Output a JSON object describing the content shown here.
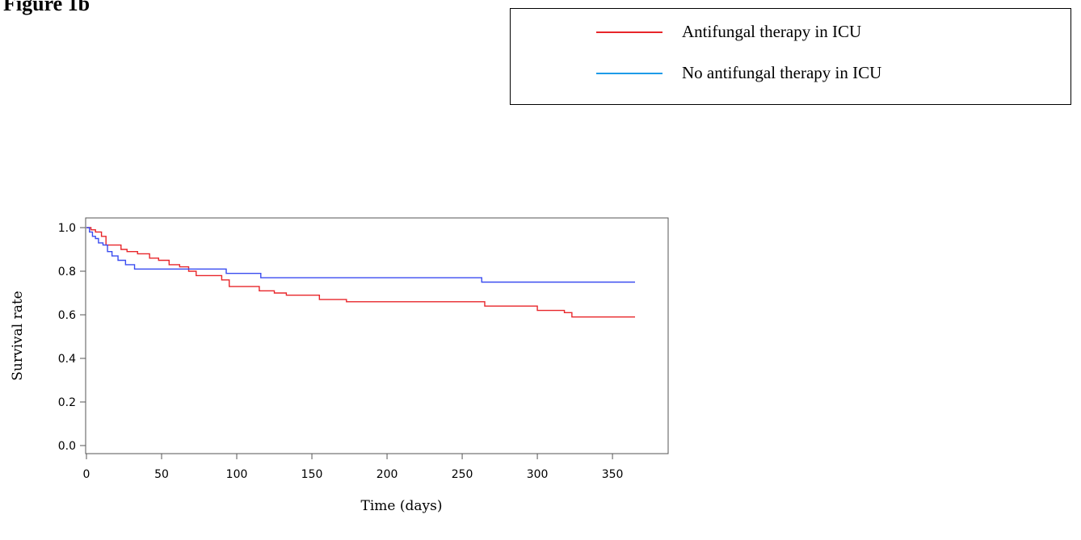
{
  "figure_label": "Figure 1b",
  "chart_data": {
    "type": "line",
    "step": true,
    "title": "",
    "xlabel": "Time (days)",
    "ylabel": "Survival rate",
    "xlim": [
      0,
      365
    ],
    "ylim": [
      0,
      1.0
    ],
    "xticks": [
      0,
      50,
      100,
      150,
      200,
      250,
      300,
      350
    ],
    "xtick_labels": [
      "0",
      "50",
      "100",
      "150",
      "200",
      "250",
      "300",
      "350"
    ],
    "yticks": [
      0.0,
      0.2,
      0.4,
      0.6,
      0.8,
      1.0
    ],
    "ytick_labels": [
      "0.0",
      "0.2",
      "0.4",
      "0.6",
      "0.8",
      "1.0"
    ],
    "grid": false,
    "legend_position": "top-right",
    "series": [
      {
        "name": "Antifungal therapy in ICU",
        "color": "#e8262a",
        "x": [
          0,
          3,
          6,
          10,
          13,
          23,
          27,
          34,
          42,
          48,
          55,
          62,
          68,
          73,
          80,
          90,
          95,
          115,
          125,
          133,
          155,
          173,
          265,
          300,
          318,
          323,
          365
        ],
        "y": [
          1.0,
          0.99,
          0.98,
          0.96,
          0.92,
          0.9,
          0.89,
          0.88,
          0.86,
          0.85,
          0.83,
          0.82,
          0.8,
          0.78,
          0.78,
          0.76,
          0.73,
          0.71,
          0.7,
          0.69,
          0.67,
          0.66,
          0.64,
          0.62,
          0.61,
          0.59,
          0.59
        ]
      },
      {
        "name": "No antifungal therapy in ICU",
        "color": "#3a4cf0",
        "legend_color": "#1e9be8",
        "x": [
          0,
          2,
          4,
          6,
          8,
          11,
          14,
          17,
          21,
          26,
          32,
          40,
          55,
          70,
          80,
          93,
          116,
          150,
          200,
          263,
          300,
          365
        ],
        "y": [
          1.0,
          0.98,
          0.96,
          0.95,
          0.93,
          0.92,
          0.89,
          0.87,
          0.85,
          0.83,
          0.81,
          0.81,
          0.81,
          0.81,
          0.81,
          0.79,
          0.77,
          0.77,
          0.77,
          0.75,
          0.75,
          0.75
        ]
      }
    ]
  }
}
